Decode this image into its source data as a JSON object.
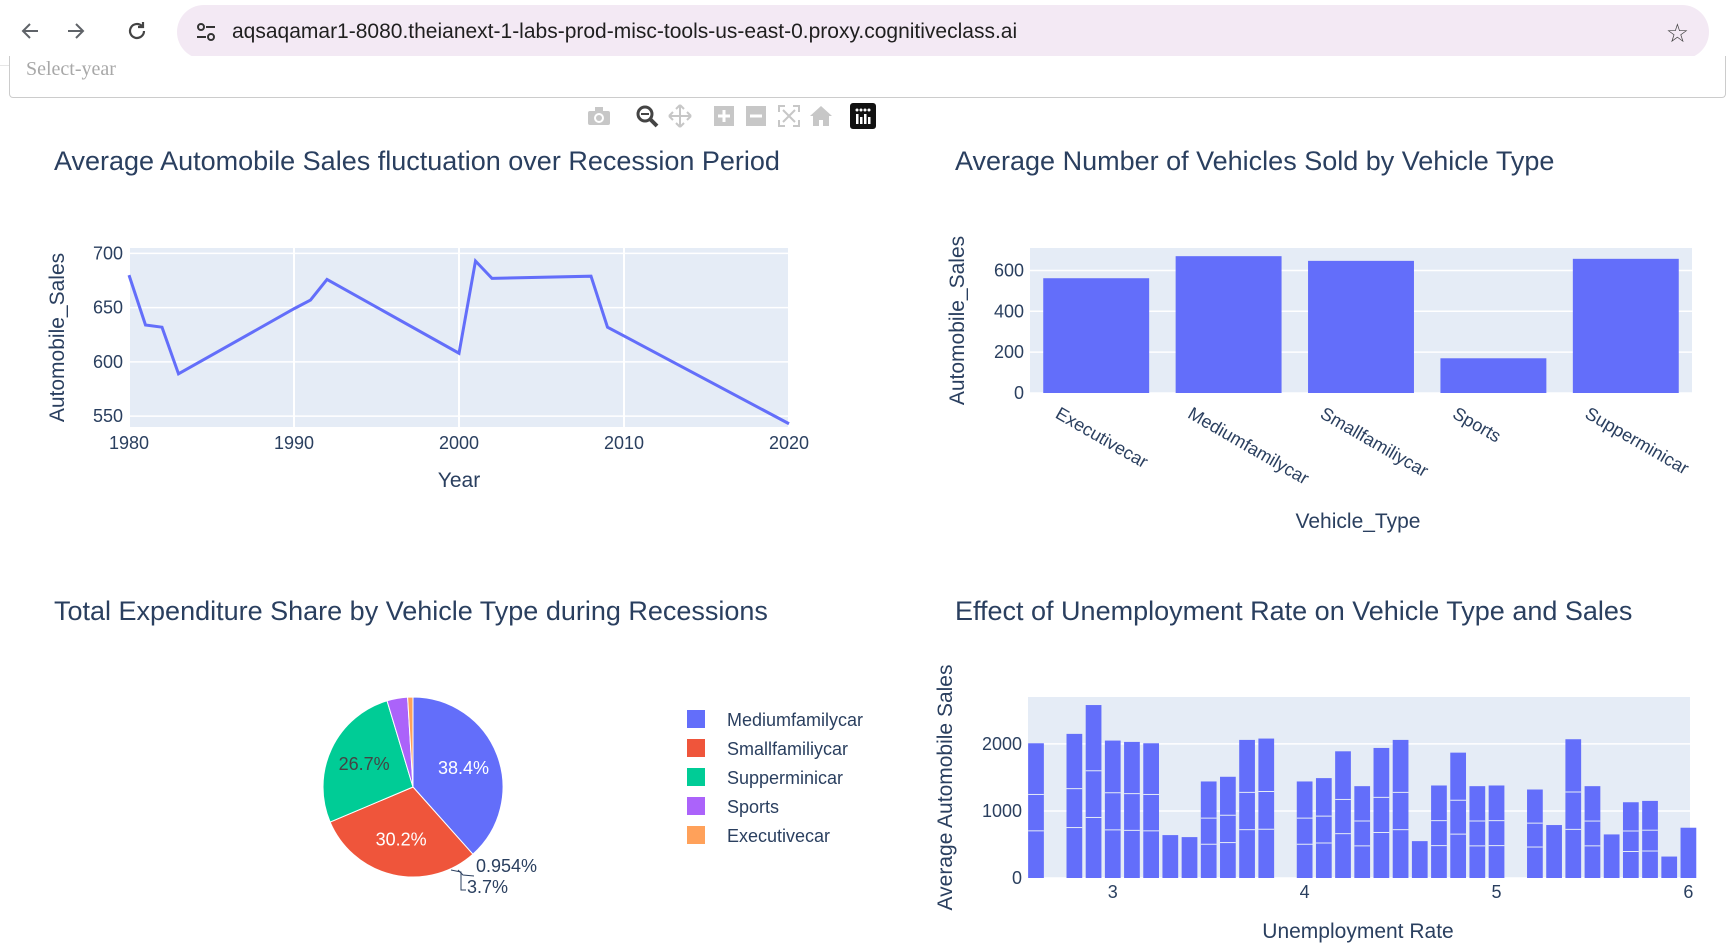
{
  "browser": {
    "url": "aqsaqamar1-8080.theianext-1-labs-prod-misc-tools-us-east-0.proxy.cognitiveclass.ai",
    "back_icon": "arrow-left-icon",
    "forward_icon": "arrow-right-icon",
    "reload_icon": "reload-icon",
    "site_info_icon": "tune-icon",
    "bookmark_icon": "star-icon"
  },
  "dropdown": {
    "placeholder": "Select-year"
  },
  "modebar": [
    "camera-icon",
    "zoom-icon",
    "pan-icon",
    "zoom-in-icon",
    "zoom-out-icon",
    "autoscale-icon",
    "home-icon",
    "plotly-logo-icon"
  ],
  "colors": {
    "plot_bg": "#e5ecf6",
    "primary": "#636efa",
    "red": "#ef553b",
    "green": "#00cc96",
    "purple": "#ab63fa",
    "orange": "#ffa15a",
    "text": "#2a3f5f"
  },
  "charts": {
    "line": {
      "title": "Average Automobile Sales fluctuation over Recession Period"
    },
    "bar": {
      "title": "Average Number of Vehicles Sold by Vehicle Type"
    },
    "pie": {
      "title": "Total Expenditure Share by Vehicle Type during Recessions"
    },
    "unemp": {
      "title": "Effect of Unemployment Rate on Vehicle Type and Sales"
    }
  },
  "chart_data": [
    {
      "type": "line",
      "title": "Average Automobile Sales fluctuation over Recession Period",
      "xlabel": "Year",
      "ylabel": "Automobile_Sales",
      "xlim": [
        1980,
        2020
      ],
      "ylim": [
        540,
        705
      ],
      "x_ticks": [
        1980,
        1990,
        2000,
        2010,
        2020
      ],
      "y_ticks": [
        550,
        600,
        650,
        700
      ],
      "grid": true,
      "x": [
        1980,
        1981,
        1982,
        1983,
        1990,
        1991,
        1992,
        2000,
        2001,
        2002,
        2008,
        2009,
        2020
      ],
      "values": [
        680,
        634,
        632,
        589,
        649,
        657,
        676,
        608,
        693,
        677,
        679,
        632,
        543
      ]
    },
    {
      "type": "bar",
      "title": "Average Number of Vehicles Sold by Vehicle Type",
      "xlabel": "Vehicle_Type",
      "ylabel": "Automobile_Sales",
      "ylim": [
        0,
        710
      ],
      "y_ticks": [
        0,
        200,
        400,
        600
      ],
      "grid": true,
      "categories": [
        "Executivecar",
        "Mediumfamilycar",
        "Smallfamiliycar",
        "Sports",
        "Supperminicar"
      ],
      "values": [
        562,
        670,
        647,
        170,
        657
      ]
    },
    {
      "type": "pie",
      "title": "Total Expenditure Share by Vehicle Type during Recessions",
      "legend_position": "right",
      "labels": [
        "Mediumfamilycar",
        "Smallfamiliycar",
        "Supperminicar",
        "Sports",
        "Executivecar"
      ],
      "values": [
        38.4,
        30.2,
        26.7,
        3.7,
        0.954
      ],
      "display_labels": [
        "38.4%",
        "30.2%",
        "26.7%",
        "3.7%",
        "0.954%"
      ]
    },
    {
      "type": "bar",
      "title": "Effect of Unemployment Rate on Vehicle Type and Sales",
      "xlabel": "Unemployment Rate",
      "ylabel": "Average Automobile Sales",
      "xlim": [
        2.6,
        6.05
      ],
      "ylim": [
        0,
        2700
      ],
      "x_ticks": [
        3,
        4,
        5,
        6
      ],
      "y_ticks": [
        0,
        1000,
        2000
      ],
      "grid": true,
      "x": [
        2.6,
        2.8,
        2.9,
        3.0,
        3.1,
        3.2,
        3.3,
        3.4,
        3.5,
        3.6,
        3.7,
        3.8,
        4.0,
        4.1,
        4.2,
        4.3,
        4.4,
        4.5,
        4.6,
        4.7,
        4.8,
        4.9,
        5.0,
        5.2,
        5.3,
        5.4,
        5.5,
        5.6,
        5.7,
        5.8,
        5.9,
        6.0
      ],
      "values": [
        2010,
        2150,
        2580,
        2050,
        2030,
        2010,
        640,
        610,
        1440,
        1510,
        2060,
        2080,
        1440,
        1490,
        1890,
        1370,
        1940,
        2060,
        550,
        1380,
        1870,
        1370,
        1380,
        1320,
        790,
        2070,
        1370,
        650,
        1130,
        1150,
        320,
        750
      ]
    }
  ]
}
